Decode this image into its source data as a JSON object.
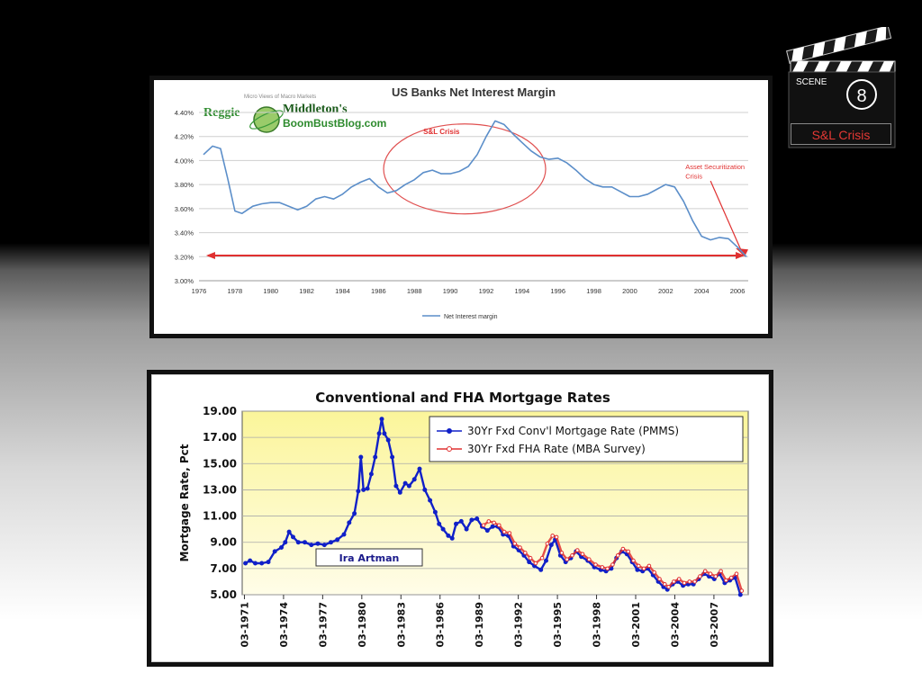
{
  "scene": {
    "label": "SCENE",
    "number": "8",
    "title": "S&L Crisis"
  },
  "logo": {
    "name1": "Reggie",
    "name2": "Middleton's",
    "site": "BoomBustBlog.com",
    "tagline": "Micro Views of Macro Markets"
  },
  "chart_data": [
    {
      "type": "line",
      "title": "US Banks Net Interest Margin",
      "xlim": [
        1976,
        2006.6
      ],
      "ylim": [
        3.0,
        4.4
      ],
      "yticks": [
        "3.00%",
        "3.20%",
        "3.40%",
        "3.60%",
        "3.80%",
        "4.00%",
        "4.20%",
        "4.40%"
      ],
      "xticks": [
        "1976",
        "1978",
        "1980",
        "1982",
        "1984",
        "1986",
        "1988",
        "1990",
        "1992",
        "1994",
        "1996",
        "1998",
        "2000",
        "2002",
        "2004",
        "2006"
      ],
      "series": [
        {
          "name": "Net Interest margin",
          "color": "#5b8ec9",
          "x": [
            1976.25,
            1976.75,
            1977.2,
            1977.6,
            1978.0,
            1978.4,
            1979.0,
            1979.5,
            1980.0,
            1980.5,
            1981.0,
            1981.5,
            1982.0,
            1982.5,
            1983.0,
            1983.5,
            1984.0,
            1984.5,
            1985.0,
            1985.5,
            1986.0,
            1986.5,
            1987.0,
            1987.5,
            1988.0,
            1988.5,
            1989.0,
            1989.5,
            1990.0,
            1990.5,
            1991.0,
            1991.5,
            1992.0,
            1992.5,
            1993.0,
            1993.5,
            1994.0,
            1994.5,
            1995.0,
            1995.5,
            1996.0,
            1996.5,
            1997.0,
            1997.5,
            1998.0,
            1998.5,
            1999.0,
            1999.5,
            2000.0,
            2000.5,
            2001.0,
            2001.5,
            2002.0,
            2002.5,
            2003.0,
            2003.5,
            2004.0,
            2004.5,
            2005.0,
            2005.5,
            2006.0,
            2006.5
          ],
          "y": [
            4.05,
            4.12,
            4.1,
            3.85,
            3.58,
            3.56,
            3.62,
            3.64,
            3.65,
            3.65,
            3.62,
            3.59,
            3.62,
            3.68,
            3.7,
            3.68,
            3.72,
            3.78,
            3.82,
            3.85,
            3.78,
            3.73,
            3.75,
            3.8,
            3.84,
            3.9,
            3.92,
            3.89,
            3.89,
            3.91,
            3.95,
            4.05,
            4.2,
            4.33,
            4.3,
            4.22,
            4.15,
            4.08,
            4.03,
            4.01,
            4.02,
            3.98,
            3.92,
            3.85,
            3.8,
            3.78,
            3.78,
            3.74,
            3.7,
            3.7,
            3.72,
            3.76,
            3.8,
            3.78,
            3.66,
            3.5,
            3.37,
            3.34,
            3.36,
            3.35,
            3.28,
            3.2
          ]
        }
      ],
      "annotations": [
        {
          "text": "S&L Crisis",
          "color": "#e03030"
        },
        {
          "text": "Asset Securitization Crisis",
          "color": "#e03030"
        }
      ],
      "reference_line": {
        "y": 3.21,
        "x": [
          1976.5,
          2006.3
        ],
        "color": "#e03030"
      },
      "legend": "bottom-center"
    },
    {
      "type": "line",
      "title": "Conventional and FHA Mortgage Rates",
      "ylabel": "Mortgage Rate, Pct",
      "ylim": [
        5.0,
        19.0
      ],
      "xlim": [
        1971.0,
        2009.8
      ],
      "yticks": [
        "19.00",
        "17.00",
        "15.00",
        "13.00",
        "11.00",
        "9.00",
        "7.00",
        "5.00"
      ],
      "xticks": [
        "03-1971",
        "03-1974",
        "03-1977",
        "03-1980",
        "03-1983",
        "03-1986",
        "03-1989",
        "03-1992",
        "03-1995",
        "03-1998",
        "03-2001",
        "03-2004",
        "03-2007"
      ],
      "annotation": "Ira Artman",
      "legend": "top-right",
      "series": [
        {
          "name": "30Yr Fxd Conv'l Mortgage Rate (PMMS)",
          "color": "#1020c8",
          "x": [
            1971.25,
            1971.6,
            1972.0,
            1972.5,
            1973.0,
            1973.5,
            1974.0,
            1974.3,
            1974.6,
            1974.9,
            1975.3,
            1975.8,
            1976.3,
            1976.8,
            1977.3,
            1977.8,
            1978.3,
            1978.8,
            1979.2,
            1979.6,
            1979.9,
            1980.1,
            1980.3,
            1980.6,
            1980.9,
            1981.2,
            1981.5,
            1981.7,
            1981.9,
            1982.2,
            1982.5,
            1982.8,
            1983.1,
            1983.5,
            1983.8,
            1984.2,
            1984.6,
            1985.0,
            1985.4,
            1985.8,
            1986.1,
            1986.4,
            1986.8,
            1987.1,
            1987.4,
            1987.8,
            1988.2,
            1988.6,
            1989.0,
            1989.4,
            1989.8,
            1990.2,
            1990.6,
            1991.0,
            1991.4,
            1991.8,
            1992.2,
            1992.6,
            1993.0,
            1993.4,
            1993.9,
            1994.3,
            1994.7,
            1995.0,
            1995.4,
            1995.8,
            1996.2,
            1996.6,
            1997.0,
            1997.5,
            1998.0,
            1998.5,
            1998.9,
            1999.3,
            1999.7,
            2000.1,
            2000.5,
            2000.9,
            2001.3,
            2001.7,
            2002.1,
            2002.5,
            2002.9,
            2003.3,
            2003.6,
            2004.0,
            2004.4,
            2004.8,
            2005.2,
            2005.6,
            2006.0,
            2006.4,
            2006.8,
            2007.2,
            2007.6,
            2008.0,
            2008.4,
            2008.8,
            2009.2
          ],
          "y": [
            7.4,
            7.6,
            7.4,
            7.4,
            7.5,
            8.3,
            8.6,
            9.0,
            9.8,
            9.4,
            9.0,
            9.0,
            8.8,
            8.9,
            8.8,
            9.0,
            9.2,
            9.6,
            10.5,
            11.2,
            12.9,
            15.5,
            13.0,
            13.1,
            14.2,
            15.5,
            17.3,
            18.4,
            17.3,
            16.8,
            15.5,
            13.3,
            12.8,
            13.5,
            13.3,
            13.8,
            14.6,
            13.0,
            12.2,
            11.3,
            10.4,
            10.0,
            9.5,
            9.3,
            10.4,
            10.6,
            10.0,
            10.7,
            10.8,
            10.2,
            9.9,
            10.2,
            10.2,
            9.6,
            9.5,
            8.7,
            8.4,
            8.0,
            7.5,
            7.2,
            6.9,
            7.6,
            8.8,
            9.2,
            8.0,
            7.5,
            7.8,
            8.3,
            7.9,
            7.6,
            7.1,
            6.9,
            6.8,
            7.0,
            7.8,
            8.3,
            8.1,
            7.5,
            6.9,
            6.8,
            7.0,
            6.5,
            6.0,
            5.6,
            5.4,
            5.8,
            6.0,
            5.7,
            5.8,
            5.8,
            6.2,
            6.6,
            6.4,
            6.2,
            6.6,
            5.9,
            6.1,
            6.3,
            5.0
          ]
        },
        {
          "name": "30Yr Fxd FHA Rate (MBA Survey)",
          "color": "#e03030",
          "x": [
            1989.5,
            1989.9,
            1990.3,
            1990.7,
            1991.1,
            1991.5,
            1991.9,
            1992.3,
            1992.7,
            1993.1,
            1993.5,
            1994.0,
            1994.4,
            1994.8,
            1995.1,
            1995.5,
            1995.9,
            1996.3,
            1996.7,
            1997.1,
            1997.6,
            1998.1,
            1998.6,
            1999.0,
            1999.4,
            1999.8,
            2000.2,
            2000.6,
            2001.0,
            2001.4,
            2001.8,
            2002.2,
            2002.6,
            2003.0,
            2003.4,
            2003.7,
            2004.1,
            2004.5,
            2004.9,
            2005.3,
            2005.7,
            2006.1,
            2006.5,
            2006.9,
            2007.3,
            2007.7,
            2008.1,
            2008.5,
            2008.9,
            2009.3
          ],
          "y": [
            10.3,
            10.6,
            10.5,
            10.3,
            9.8,
            9.7,
            8.9,
            8.6,
            8.2,
            7.8,
            7.4,
            7.8,
            8.9,
            9.5,
            9.4,
            8.2,
            7.7,
            8.0,
            8.4,
            8.1,
            7.7,
            7.3,
            7.1,
            7.0,
            7.3,
            8.0,
            8.5,
            8.3,
            7.6,
            7.2,
            7.0,
            7.2,
            6.7,
            6.2,
            5.8,
            5.6,
            6.0,
            6.2,
            5.9,
            6.0,
            6.0,
            6.4,
            6.8,
            6.6,
            6.4,
            6.8,
            6.1,
            6.3,
            6.6,
            5.3
          ]
        }
      ]
    }
  ]
}
